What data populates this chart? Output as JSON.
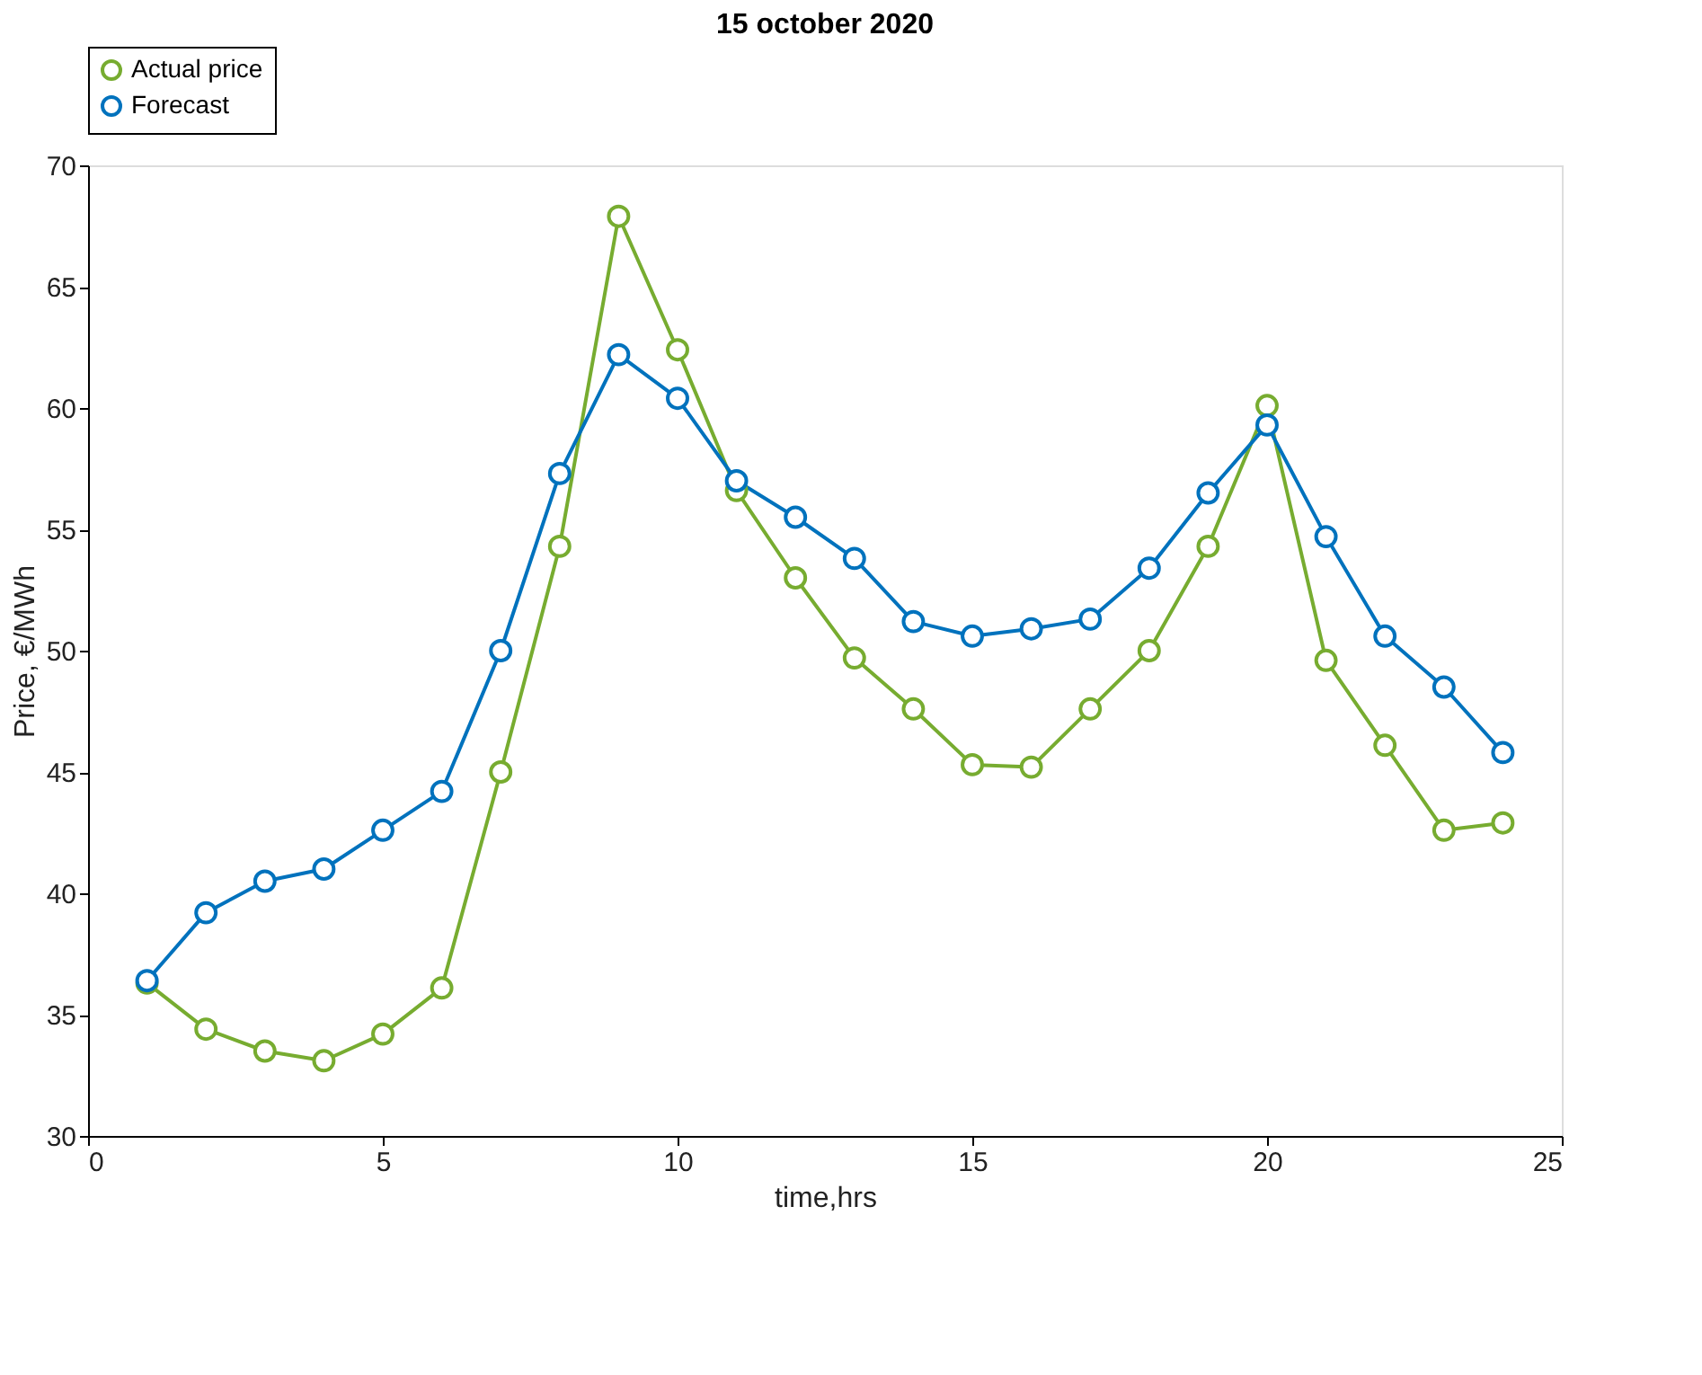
{
  "chart_data": {
    "type": "line",
    "title": "15 october 2020",
    "xlabel": "time,hrs",
    "ylabel": "Price, €/MWh",
    "x": [
      1,
      2,
      3,
      4,
      5,
      6,
      7,
      8,
      9,
      10,
      11,
      12,
      13,
      14,
      15,
      16,
      17,
      18,
      19,
      20,
      21,
      22,
      23,
      24
    ],
    "series": [
      {
        "name": "Actual price",
        "color": "#77ac30",
        "values": [
          36.3,
          34.4,
          33.5,
          33.1,
          34.2,
          36.1,
          45.0,
          54.3,
          67.9,
          62.4,
          56.6,
          53.0,
          49.7,
          47.6,
          45.3,
          45.2,
          47.6,
          50.0,
          54.3,
          60.1,
          49.6,
          46.1,
          42.6,
          42.9
        ]
      },
      {
        "name": "Forecast",
        "color": "#0072bd",
        "values": [
          36.4,
          39.2,
          40.5,
          41.0,
          42.6,
          44.2,
          50.0,
          57.3,
          62.2,
          60.4,
          57.0,
          55.5,
          53.8,
          51.2,
          50.6,
          50.9,
          51.3,
          53.4,
          56.5,
          59.3,
          54.7,
          50.6,
          48.5,
          45.8
        ]
      }
    ],
    "xlim": [
      0,
      25
    ],
    "xticks": [
      0,
      5,
      10,
      15,
      20,
      25
    ],
    "ylim": [
      30,
      70
    ],
    "yticks": [
      30,
      35,
      40,
      45,
      50,
      55,
      60,
      65,
      70
    ],
    "grid": false,
    "legend": "top",
    "marker": "circle",
    "line_style": "solid"
  }
}
